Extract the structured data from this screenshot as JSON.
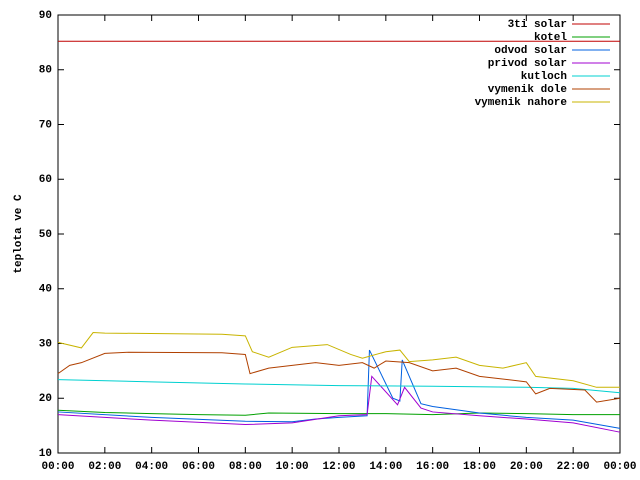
{
  "chart_data": {
    "type": "line",
    "y_label": "teplota ve C",
    "xlim": [
      0,
      24
    ],
    "ylim": [
      10,
      90
    ],
    "yticks": [
      10,
      20,
      30,
      40,
      50,
      60,
      70,
      80,
      90
    ],
    "xticks": [
      {
        "value": 0,
        "label": "00:00"
      },
      {
        "value": 2,
        "label": "02:00"
      },
      {
        "value": 4,
        "label": "04:00"
      },
      {
        "value": 6,
        "label": "06:00"
      },
      {
        "value": 8,
        "label": "08:00"
      },
      {
        "value": 10,
        "label": "10:00"
      },
      {
        "value": 12,
        "label": "12:00"
      },
      {
        "value": 14,
        "label": "14:00"
      },
      {
        "value": 16,
        "label": "16:00"
      },
      {
        "value": 18,
        "label": "18:00"
      },
      {
        "value": 20,
        "label": "20:00"
      },
      {
        "value": 22,
        "label": "22:00"
      },
      {
        "value": 24,
        "label": "00:00"
      }
    ],
    "legend": "upper right",
    "series": [
      {
        "name": "3ti solar",
        "color": "#c00000",
        "x": [
          0,
          24
        ],
        "values": [
          85.2,
          85.2
        ]
      },
      {
        "name": "kotel",
        "color": "#00a000",
        "x": [
          0,
          2,
          4,
          6,
          8,
          9,
          12,
          14,
          16,
          18,
          20,
          22,
          24
        ],
        "values": [
          17.8,
          17.4,
          17.2,
          17.0,
          16.9,
          17.3,
          17.2,
          17.2,
          17.0,
          17.3,
          17.2,
          17.0,
          17.0
        ]
      },
      {
        "name": "odvod solar",
        "color": "#0060e0",
        "x": [
          0,
          4,
          8,
          10,
          11,
          12,
          13.2,
          13.3,
          14.3,
          14.6,
          14.7,
          15.5,
          16,
          18,
          20,
          22,
          24
        ],
        "values": [
          17.5,
          16.5,
          15.8,
          15.7,
          16.2,
          16.5,
          16.8,
          28.8,
          20,
          19.5,
          27,
          19,
          18.5,
          17.3,
          16.5,
          16,
          14.5
        ]
      },
      {
        "name": "privod solar",
        "color": "#a000d0",
        "x": [
          0,
          4,
          8,
          10,
          12,
          13.2,
          13.4,
          14.5,
          14.8,
          15.5,
          16,
          18,
          20,
          22,
          24
        ],
        "values": [
          17.0,
          16.0,
          15.2,
          15.5,
          16.8,
          17,
          24,
          18.8,
          22,
          18.2,
          17.5,
          16.8,
          16.2,
          15.5,
          13.8
        ]
      },
      {
        "name": "kutloch",
        "color": "#00d0d0",
        "x": [
          0,
          4,
          8,
          12,
          16,
          20,
          22,
          24
        ],
        "values": [
          23.4,
          23.0,
          22.6,
          22.3,
          22.2,
          22.0,
          21.8,
          21.0
        ]
      },
      {
        "name": "vymenik dole",
        "color": "#b04000",
        "x": [
          0,
          0.5,
          1,
          2,
          3,
          7,
          8,
          8.2,
          9,
          11,
          12,
          13,
          13.5,
          14,
          15,
          16,
          17,
          18,
          20,
          20.4,
          21,
          22.5,
          23,
          24
        ],
        "values": [
          24.5,
          26,
          26.5,
          28.2,
          28.4,
          28.3,
          28,
          24.5,
          25.5,
          26.5,
          26,
          26.5,
          25.5,
          26.8,
          26.5,
          25,
          25.5,
          24,
          23,
          20.8,
          21.8,
          21.5,
          19.3,
          20
        ]
      },
      {
        "name": "vymenik nahore",
        "color": "#c8b400",
        "x": [
          0,
          1,
          1.5,
          2,
          7,
          8,
          8.3,
          9,
          10,
          11.5,
          12.5,
          13,
          14,
          14.6,
          15,
          16,
          17,
          18,
          19,
          20,
          20.4,
          22,
          23,
          24
        ],
        "values": [
          30.2,
          29.2,
          32,
          31.9,
          31.7,
          31.4,
          28.5,
          27.5,
          29.3,
          29.8,
          28,
          27.3,
          28.5,
          28.8,
          26.7,
          27,
          27.5,
          26,
          25.5,
          26.5,
          24,
          23.2,
          22,
          22
        ]
      }
    ]
  }
}
